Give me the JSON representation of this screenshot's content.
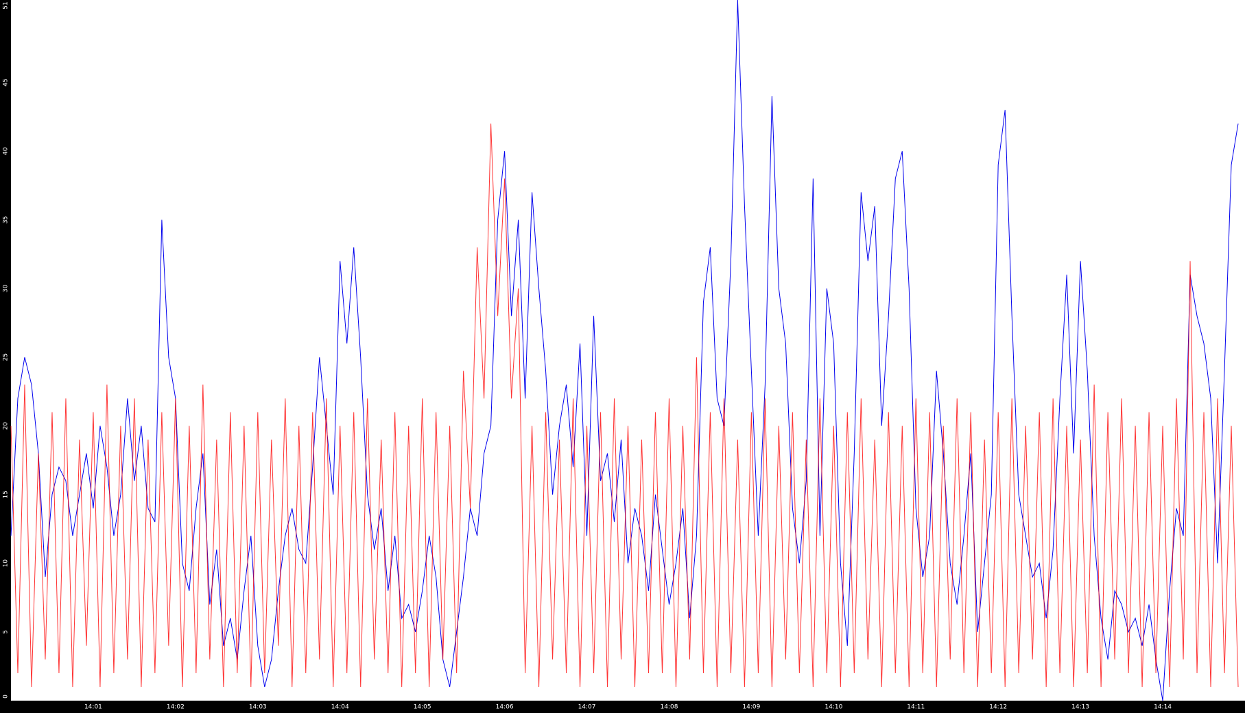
{
  "chart_data": {
    "type": "line",
    "ylim": [
      0,
      51
    ],
    "yticks": [
      0,
      5,
      10,
      15,
      20,
      25,
      30,
      35,
      40,
      45,
      51
    ],
    "categories": [
      null,
      null,
      null,
      null,
      null,
      null,
      null,
      null,
      null,
      null,
      null,
      null,
      "14:01",
      null,
      null,
      null,
      null,
      null,
      null,
      null,
      null,
      null,
      null,
      null,
      "14:02",
      null,
      null,
      null,
      null,
      null,
      null,
      null,
      null,
      null,
      null,
      null,
      "14:03",
      null,
      null,
      null,
      null,
      null,
      null,
      null,
      null,
      null,
      null,
      null,
      "14:04",
      null,
      null,
      null,
      null,
      null,
      null,
      null,
      null,
      null,
      null,
      null,
      "14:05",
      null,
      null,
      null,
      null,
      null,
      null,
      null,
      null,
      null,
      null,
      null,
      "14:06",
      null,
      null,
      null,
      null,
      null,
      null,
      null,
      null,
      null,
      null,
      null,
      "14:07",
      null,
      null,
      null,
      null,
      null,
      null,
      null,
      null,
      null,
      null,
      null,
      "14:08",
      null,
      null,
      null,
      null,
      null,
      null,
      null,
      null,
      null,
      null,
      null,
      "14:09",
      null,
      null,
      null,
      null,
      null,
      null,
      null,
      null,
      null,
      null,
      null,
      "14:10",
      null,
      null,
      null,
      null,
      null,
      null,
      null,
      null,
      null,
      null,
      null,
      "14:11",
      null,
      null,
      null,
      null,
      null,
      null,
      null,
      null,
      null,
      null,
      null,
      "14:12",
      null,
      null,
      null,
      null,
      null,
      null,
      null,
      null,
      null,
      null,
      null,
      "14:13",
      null,
      null,
      null,
      null,
      null,
      null,
      null,
      null,
      null,
      null,
      null,
      "14:14",
      null,
      null,
      null,
      null,
      null,
      null,
      null,
      null,
      null,
      null,
      null
    ],
    "series": [
      {
        "color": "#0000ee",
        "values": [
          12,
          22,
          25,
          23,
          18,
          9,
          15,
          17,
          16,
          12,
          15,
          18,
          14,
          20,
          17,
          12,
          15,
          22,
          16,
          20,
          14,
          13,
          35,
          25,
          22,
          10,
          8,
          14,
          18,
          7,
          11,
          4,
          6,
          3,
          8,
          12,
          4,
          1,
          3,
          8,
          12,
          14,
          11,
          10,
          17,
          25,
          20,
          15,
          32,
          26,
          33,
          25,
          15,
          11,
          14,
          8,
          12,
          6,
          7,
          5,
          8,
          12,
          9,
          3,
          1,
          5,
          9,
          14,
          12,
          18,
          20,
          35,
          40,
          28,
          35,
          22,
          37,
          30,
          24,
          15,
          20,
          23,
          17,
          26,
          12,
          28,
          16,
          18,
          13,
          19,
          10,
          14,
          12,
          8,
          15,
          11,
          7,
          10,
          14,
          6,
          12,
          29,
          33,
          22,
          20,
          32,
          51,
          36,
          24,
          12,
          23,
          44,
          30,
          26,
          14,
          10,
          16,
          38,
          12,
          30,
          26,
          10,
          4,
          18,
          37,
          32,
          36,
          20,
          28,
          38,
          40,
          30,
          14,
          9,
          12,
          24,
          18,
          10,
          7,
          12,
          18,
          5,
          10,
          15,
          39,
          43,
          28,
          15,
          12,
          9,
          10,
          6,
          11,
          22,
          31,
          18,
          32,
          24,
          12,
          6,
          3,
          8,
          7,
          5,
          6,
          4,
          7,
          3,
          0,
          8,
          14,
          12,
          31,
          28,
          26,
          22,
          10,
          24,
          39,
          42
        ]
      },
      {
        "color": "#ff0000",
        "values": [
          20,
          2,
          23,
          1,
          18,
          3,
          21,
          2,
          22,
          1,
          19,
          4,
          21,
          1,
          23,
          2,
          20,
          3,
          22,
          1,
          19,
          2,
          21,
          4,
          22,
          1,
          20,
          2,
          23,
          3,
          19,
          1,
          21,
          2,
          20,
          1,
          21,
          2,
          19,
          4,
          22,
          1,
          20,
          2,
          21,
          3,
          22,
          1,
          20,
          2,
          21,
          1,
          22,
          3,
          19,
          2,
          21,
          1,
          20,
          2,
          22,
          1,
          21,
          3,
          20,
          2,
          24,
          14,
          33,
          22,
          42,
          28,
          38,
          22,
          30,
          2,
          20,
          1,
          21,
          3,
          19,
          2,
          22,
          1,
          20,
          2,
          21,
          1,
          22,
          3,
          20,
          1,
          19,
          2,
          21,
          2,
          22,
          1,
          20,
          3,
          25,
          2,
          21,
          1,
          22,
          2,
          19,
          1,
          21,
          2,
          22,
          1,
          20,
          3,
          21,
          2,
          19,
          1,
          22,
          2,
          20,
          1,
          21,
          2,
          22,
          3,
          19,
          1,
          21,
          2,
          20,
          1,
          22,
          2,
          21,
          1,
          20,
          3,
          22,
          2,
          21,
          1,
          19,
          2,
          21,
          1,
          22,
          2,
          20,
          3,
          21,
          1,
          22,
          2,
          20,
          1,
          19,
          2,
          23,
          1,
          21,
          3,
          22,
          2,
          20,
          1,
          21,
          2,
          20,
          1,
          22,
          3,
          32,
          2,
          21,
          1,
          22,
          2,
          20,
          1
        ]
      }
    ]
  }
}
